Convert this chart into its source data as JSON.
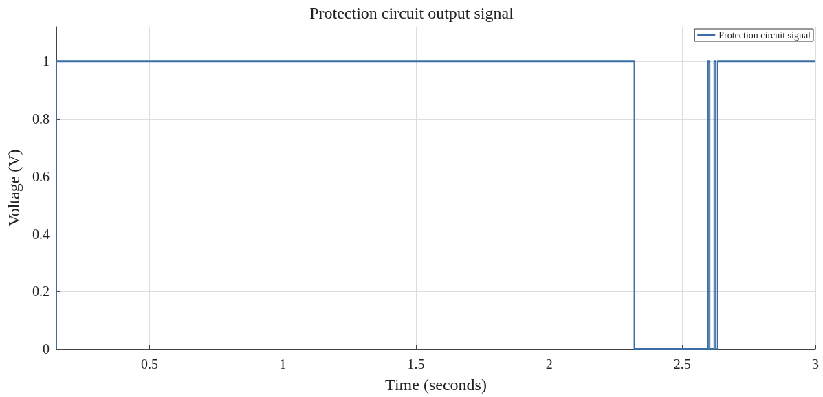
{
  "chart_data": {
    "type": "step",
    "title": "Protection circuit output signal",
    "xlabel": "Time (seconds)",
    "ylabel": "Voltage (V)",
    "x": [
      0.15,
      0.15,
      2.32,
      2.597,
      2.603,
      2.62,
      2.626,
      2.633,
      3
    ],
    "series": [
      {
        "name": "Protection circuit signal",
        "color": "#3a6ea5",
        "values": [
          0,
          1,
          0,
          1,
          0,
          1,
          0,
          1,
          1
        ]
      }
    ],
    "xlim": [
      0.15,
      3
    ],
    "xticks": [
      0.5,
      1,
      1.5,
      2,
      2.5,
      3
    ],
    "ylim": [
      0,
      1.12
    ],
    "yticks": [
      0,
      0.2,
      0.4,
      0.6,
      0.8,
      1
    ],
    "grid": true,
    "legend": "top right",
    "marker": "none",
    "line_style": "solid"
  }
}
